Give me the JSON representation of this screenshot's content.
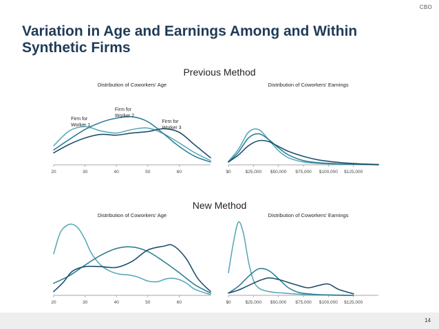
{
  "brand": "CBO",
  "title": "Variation in Age and Earnings Among and Within Synthetic Firms",
  "sections": {
    "previous": "Previous Method",
    "new": "New Method"
  },
  "page_number": "14",
  "colors": {
    "series1": "#5aa9b8",
    "series2": "#2f7f95",
    "series3": "#1d4f6c",
    "axis": "#888888",
    "title": "#1f3b57"
  },
  "chart_data": [
    {
      "id": "prev-age",
      "type": "line",
      "title": "Distribution of Coworkers' Age",
      "xlim": [
        20,
        70
      ],
      "ylim": [
        0,
        1
      ],
      "tick_values": [
        20,
        30,
        40,
        50,
        60
      ],
      "tick_labels": [
        "20",
        "30",
        "40",
        "50",
        "60"
      ],
      "series": [
        {
          "name": "Firm for Worker 1",
          "x": [
            20,
            25,
            30,
            35,
            40,
            45,
            50,
            55,
            60,
            65,
            70
          ],
          "y": [
            0.27,
            0.48,
            0.54,
            0.48,
            0.45,
            0.5,
            0.52,
            0.44,
            0.31,
            0.17,
            0.06
          ]
        },
        {
          "name": "Firm for Worker 2",
          "x": [
            20,
            25,
            30,
            35,
            40,
            45,
            50,
            55,
            60,
            65,
            70
          ],
          "y": [
            0.21,
            0.36,
            0.5,
            0.6,
            0.66,
            0.68,
            0.61,
            0.44,
            0.26,
            0.12,
            0.04
          ]
        },
        {
          "name": "Firm for Worker 3",
          "x": [
            20,
            25,
            30,
            35,
            40,
            45,
            50,
            55,
            60,
            65,
            70
          ],
          "y": [
            0.17,
            0.29,
            0.38,
            0.43,
            0.42,
            0.45,
            0.47,
            0.51,
            0.46,
            0.28,
            0.1
          ]
        }
      ],
      "annotations": [
        {
          "text": [
            "Firm for",
            "Worker 1"
          ],
          "x": 25.5,
          "y": 0.63
        },
        {
          "text": [
            "Firm for",
            "Worker 2"
          ],
          "x": 39.5,
          "y": 0.76
        },
        {
          "text": [
            "Firm for",
            "Worker 3"
          ],
          "x": 54.5,
          "y": 0.59
        }
      ]
    },
    {
      "id": "prev-earn",
      "type": "line",
      "title": "Distribution of Coworkers' Earnings",
      "xlim": [
        0,
        150000
      ],
      "ylim": [
        0,
        1
      ],
      "tick_values": [
        0,
        25000,
        50000,
        75000,
        100000,
        125000
      ],
      "tick_labels": [
        "$0",
        "$25,000",
        "$50,000",
        "$75,000",
        "$100,000",
        "$125,000"
      ],
      "series": [
        {
          "name": "Firm for Worker 1",
          "x": [
            0,
            10000,
            20000,
            30000,
            40000,
            50000,
            60000,
            75000,
            90000,
            110000,
            130000,
            150000
          ],
          "y": [
            0.05,
            0.22,
            0.46,
            0.5,
            0.36,
            0.2,
            0.1,
            0.04,
            0.02,
            0.01,
            0.005,
            0.0
          ]
        },
        {
          "name": "Firm for Worker 2",
          "x": [
            0,
            10000,
            20000,
            30000,
            40000,
            50000,
            60000,
            75000,
            90000,
            110000,
            130000,
            150000
          ],
          "y": [
            0.04,
            0.18,
            0.38,
            0.44,
            0.36,
            0.24,
            0.14,
            0.06,
            0.03,
            0.015,
            0.008,
            0.0
          ]
        },
        {
          "name": "Firm for Worker 3",
          "x": [
            0,
            10000,
            20000,
            30000,
            40000,
            50000,
            60000,
            75000,
            90000,
            110000,
            130000,
            150000
          ],
          "y": [
            0.04,
            0.14,
            0.27,
            0.34,
            0.33,
            0.26,
            0.19,
            0.12,
            0.07,
            0.035,
            0.015,
            0.005
          ]
        }
      ]
    },
    {
      "id": "new-age",
      "type": "line",
      "title": "Distribution of Coworkers' Age",
      "xlim": [
        20,
        70
      ],
      "ylim": [
        0,
        1
      ],
      "tick_values": [
        20,
        30,
        40,
        50,
        60
      ],
      "tick_labels": [
        "20",
        "30",
        "40",
        "50",
        "60"
      ],
      "series": [
        {
          "name": "Firm for Worker 1",
          "x": [
            20,
            22,
            24,
            26,
            28,
            30,
            32,
            35,
            38,
            41,
            44,
            47,
            50,
            53,
            56,
            59,
            62,
            65,
            70
          ],
          "y": [
            0.55,
            0.82,
            0.92,
            0.94,
            0.88,
            0.74,
            0.56,
            0.4,
            0.32,
            0.28,
            0.27,
            0.24,
            0.19,
            0.18,
            0.22,
            0.22,
            0.17,
            0.08,
            0.01
          ]
        },
        {
          "name": "Firm for Worker 2",
          "x": [
            20,
            25,
            30,
            35,
            40,
            45,
            50,
            55,
            60,
            65,
            70
          ],
          "y": [
            0.16,
            0.26,
            0.4,
            0.53,
            0.62,
            0.64,
            0.58,
            0.45,
            0.3,
            0.14,
            0.03
          ]
        },
        {
          "name": "Firm for Worker 3",
          "x": [
            20,
            23,
            26,
            30,
            35,
            40,
            45,
            50,
            55,
            58,
            62,
            66,
            70
          ],
          "y": [
            0.05,
            0.17,
            0.32,
            0.38,
            0.38,
            0.37,
            0.45,
            0.6,
            0.65,
            0.66,
            0.5,
            0.22,
            0.05
          ]
        }
      ]
    },
    {
      "id": "new-earn",
      "type": "line",
      "title": "Distribution of Coworkers' Earnings",
      "xlim": [
        0,
        150000
      ],
      "ylim": [
        0,
        1
      ],
      "tick_values": [
        0,
        25000,
        50000,
        75000,
        100000,
        125000
      ],
      "tick_labels": [
        "$0",
        "$25,000",
        "$50,000",
        "$75,000",
        "$100,000",
        "$125,000"
      ],
      "series": [
        {
          "name": "Firm for Worker 1",
          "x": [
            0,
            5000,
            10000,
            15000,
            20000,
            25000,
            30000,
            37000,
            45000,
            55000,
            65000,
            80000,
            95000,
            110000,
            125000
          ],
          "y": [
            0.3,
            0.7,
            0.97,
            0.82,
            0.45,
            0.2,
            0.1,
            0.06,
            0.04,
            0.03,
            0.02,
            0.01,
            0.005,
            0.0,
            0.0
          ]
        },
        {
          "name": "Firm for Worker 2",
          "x": [
            0,
            10000,
            20000,
            30000,
            40000,
            50000,
            60000,
            70000,
            80000,
            90000,
            100000,
            110000,
            125000
          ],
          "y": [
            0.03,
            0.12,
            0.25,
            0.35,
            0.33,
            0.22,
            0.1,
            0.04,
            0.02,
            0.01,
            0.006,
            0.003,
            0.0
          ]
        },
        {
          "name": "Firm for Worker 3",
          "x": [
            0,
            10000,
            20000,
            30000,
            40000,
            50000,
            60000,
            70000,
            80000,
            90000,
            100000,
            110000,
            125000
          ],
          "y": [
            0.03,
            0.07,
            0.13,
            0.19,
            0.23,
            0.21,
            0.17,
            0.13,
            0.1,
            0.13,
            0.15,
            0.08,
            0.02
          ]
        }
      ]
    }
  ]
}
